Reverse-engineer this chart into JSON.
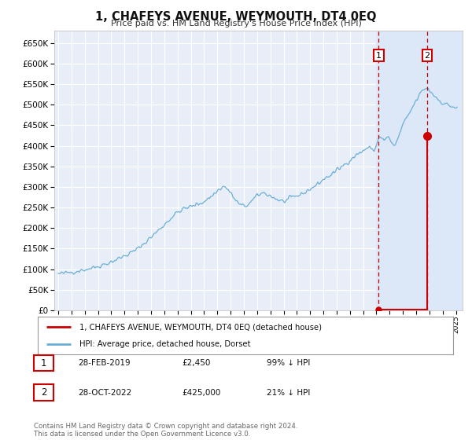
{
  "title": "1, CHAFEYS AVENUE, WEYMOUTH, DT4 0EQ",
  "subtitle": "Price paid vs. HM Land Registry's House Price Index (HPI)",
  "legend_line1": "1, CHAFEYS AVENUE, WEYMOUTH, DT4 0EQ (detached house)",
  "legend_line2": "HPI: Average price, detached house, Dorset",
  "footnote": "Contains HM Land Registry data © Crown copyright and database right 2024.\nThis data is licensed under the Open Government Licence v3.0.",
  "event1_label": "1",
  "event1_date": "28-FEB-2019",
  "event1_price": "£2,450",
  "event1_pct": "99% ↓ HPI",
  "event2_label": "2",
  "event2_date": "28-OCT-2022",
  "event2_price": "£425,000",
  "event2_pct": "21% ↓ HPI",
  "hpi_color": "#6baed6",
  "price_color": "#cc0000",
  "background_color": "#ffffff",
  "plot_bg_color": "#e8eef8",
  "grid_color": "#ffffff",
  "highlight_color": "#dce8f8",
  "ylim": [
    0,
    680000
  ],
  "yticks": [
    0,
    50000,
    100000,
    150000,
    200000,
    250000,
    300000,
    350000,
    400000,
    450000,
    500000,
    550000,
    600000,
    650000
  ],
  "sale1_x": 2019.17,
  "sale1_y": 2450,
  "sale2_x": 2022.83,
  "sale2_y": 425000,
  "event1_x": 2019.17,
  "event2_x": 2022.83,
  "highlight_xmin": 2019.0,
  "highlight_xmax": 2025.5,
  "xmin": 1994.7,
  "xmax": 2025.5
}
